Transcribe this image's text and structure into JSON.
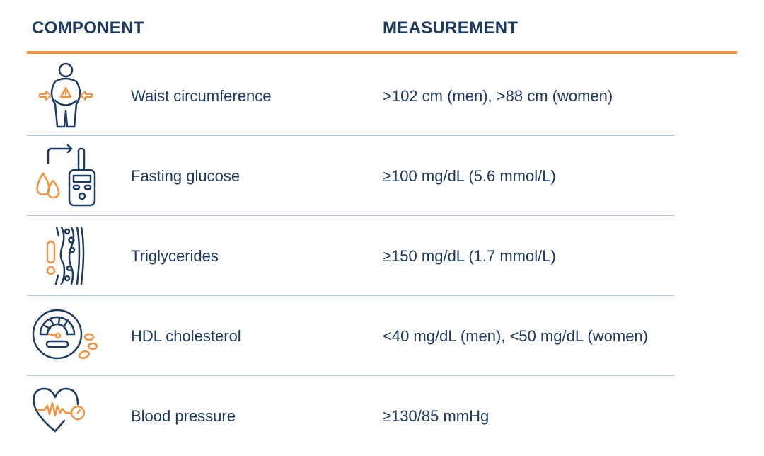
{
  "header": {
    "component": "COMPONENT",
    "measurement": "MEASUREMENT"
  },
  "colors": {
    "navy": "#1d3a63",
    "orange": "#f5923e",
    "divider": "#b8c4d2"
  },
  "rows": [
    {
      "icon": "waist-icon",
      "component": "Waist circumference",
      "measurement": ">102 cm (men), >88 cm (women)"
    },
    {
      "icon": "glucose-meter-icon",
      "component": "Fasting glucose",
      "measurement": "≥100 mg/dL (5.6 mmol/L)"
    },
    {
      "icon": "artery-icon",
      "component": "Triglycerides",
      "measurement": "≥150 mg/dL (1.7 mmol/L)"
    },
    {
      "icon": "gauge-icon",
      "component": "HDL cholesterol",
      "measurement": "<40 mg/dL (men), <50 mg/dL (women)"
    },
    {
      "icon": "heart-pressure-icon",
      "component": "Blood pressure",
      "measurement": "≥130/85 mmHg"
    }
  ]
}
